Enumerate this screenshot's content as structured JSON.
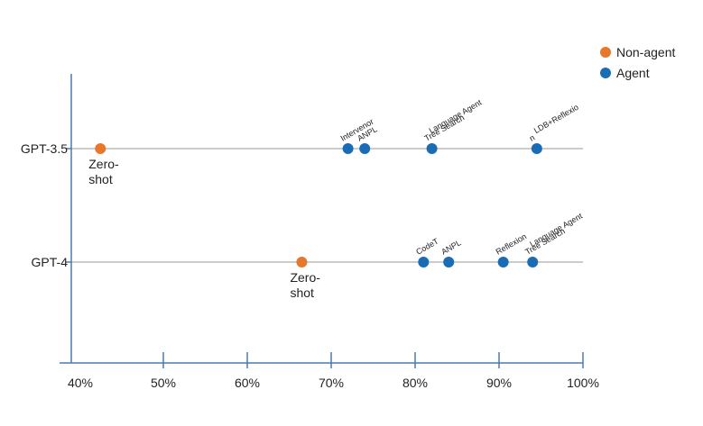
{
  "chart_data": {
    "type": "scatter",
    "title": "",
    "xlabel": "",
    "ylabel": "",
    "xlim": [
      38,
      100
    ],
    "x_ticks": [
      40,
      50,
      60,
      70,
      80,
      90,
      100
    ],
    "x_tick_labels": [
      "40%",
      "50%",
      "60%",
      "70%",
      "80%",
      "90%",
      "100%"
    ],
    "rows": [
      "GPT-3.5",
      "GPT-4"
    ],
    "legend": [
      {
        "name": "Non-agent",
        "color": "#e8772e"
      },
      {
        "name": "Agent",
        "color": "#1a6db5"
      }
    ],
    "points": [
      {
        "row": "GPT-3.5",
        "x": 42.5,
        "category": "Non-agent",
        "label_lines": [
          "Zero-",
          "shot"
        ],
        "label_style": "below"
      },
      {
        "row": "GPT-3.5",
        "x": 72.0,
        "category": "Agent",
        "label_lines": [
          "Intervenor"
        ],
        "label_style": "rotated"
      },
      {
        "row": "GPT-3.5",
        "x": 74.0,
        "category": "Agent",
        "label_lines": [
          "ANPL"
        ],
        "label_style": "rotated"
      },
      {
        "row": "GPT-3.5",
        "x": 82.0,
        "category": "Agent",
        "label_lines": [
          "Language Agent",
          "Tree Search"
        ],
        "label_style": "rotated"
      },
      {
        "row": "GPT-3.5",
        "x": 94.5,
        "category": "Agent",
        "label_lines": [
          "LDB+Reflexio",
          "n"
        ],
        "label_style": "rotated"
      },
      {
        "row": "GPT-4",
        "x": 66.5,
        "category": "Non-agent",
        "label_lines": [
          "Zero-",
          "shot"
        ],
        "label_style": "below"
      },
      {
        "row": "GPT-4",
        "x": 81.0,
        "category": "Agent",
        "label_lines": [
          "CodeT"
        ],
        "label_style": "rotated"
      },
      {
        "row": "GPT-4",
        "x": 84.0,
        "category": "Agent",
        "label_lines": [
          "ANPL"
        ],
        "label_style": "rotated"
      },
      {
        "row": "GPT-4",
        "x": 90.5,
        "category": "Agent",
        "label_lines": [
          "Reflexion"
        ],
        "label_style": "rotated"
      },
      {
        "row": "GPT-4",
        "x": 94.0,
        "category": "Agent",
        "label_lines": [
          "Language Agent",
          "Tree Search"
        ],
        "label_style": "rotated"
      }
    ]
  }
}
